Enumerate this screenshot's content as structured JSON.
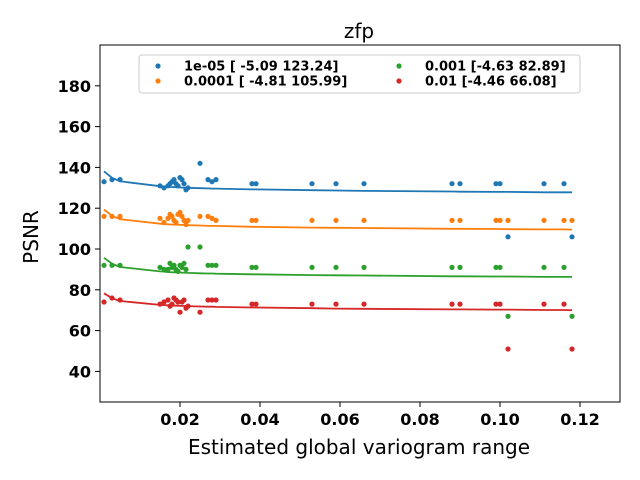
{
  "chart_data": {
    "type": "scatter",
    "title": "zfp",
    "xlabel": "Estimated global variogram range",
    "ylabel": "PSNR",
    "xlim": [
      0.0,
      0.13
    ],
    "ylim": [
      25,
      200
    ],
    "xticks": [
      0.02,
      0.04,
      0.06,
      0.08,
      0.1,
      0.12
    ],
    "xtick_labels": [
      "0.02",
      "0.04",
      "0.06",
      "0.08",
      "0.10",
      "0.12"
    ],
    "yticks": [
      40,
      60,
      80,
      100,
      120,
      140,
      160,
      180
    ],
    "ytick_labels": [
      "40",
      "60",
      "80",
      "100",
      "120",
      "140",
      "160",
      "180"
    ],
    "grid": false,
    "legend_position": "top-center",
    "x": [
      0.001,
      0.003,
      0.005,
      0.015,
      0.016,
      0.017,
      0.0175,
      0.018,
      0.0185,
      0.019,
      0.0195,
      0.02,
      0.0205,
      0.021,
      0.0215,
      0.022,
      0.025,
      0.027,
      0.028,
      0.029,
      0.038,
      0.039,
      0.053,
      0.059,
      0.066,
      0.088,
      0.09,
      0.099,
      0.1,
      0.102,
      0.111,
      0.116,
      0.118
    ],
    "series": [
      {
        "name": "1e-05 [ -5.09 123.24]",
        "color": "#1f77b4",
        "y": [
          133,
          134,
          134,
          131,
          130,
          131,
          132,
          133,
          134,
          132,
          131,
          135,
          134,
          132,
          129,
          130,
          142,
          134,
          133,
          134,
          132,
          132,
          132,
          132,
          132,
          132,
          132,
          132,
          132,
          106,
          132,
          132,
          106
        ],
        "fit": [
          138.1,
          134.9,
          133.2,
          130.8,
          130.6,
          130.5,
          130.4,
          130.4,
          130.3,
          130.3,
          130.2,
          130.2,
          130.1,
          130.1,
          130.1,
          130.0,
          129.8,
          129.7,
          129.6,
          129.6,
          129.2,
          129.2,
          128.8,
          128.7,
          128.5,
          128.2,
          128.1,
          128.0,
          128.0,
          128.0,
          127.8,
          127.8,
          127.8
        ]
      },
      {
        "name": "0.0001 [ -4.81 105.99]",
        "color": "#ff7f0e",
        "y": [
          116,
          116,
          116,
          115,
          113,
          115,
          117,
          116,
          114,
          113,
          117,
          118,
          116,
          114,
          112,
          114,
          116,
          116,
          115,
          114,
          114,
          114,
          114,
          114,
          114,
          114,
          114,
          114,
          114,
          114,
          114,
          114,
          114
        ],
        "fit": [
          119.3,
          116.3,
          114.6,
          112.4,
          112.2,
          112.1,
          112.0,
          112.0,
          111.9,
          111.9,
          111.9,
          111.8,
          111.8,
          111.8,
          111.7,
          111.7,
          111.5,
          111.3,
          111.3,
          111.3,
          110.9,
          110.9,
          110.5,
          110.4,
          110.3,
          109.9,
          109.9,
          109.8,
          109.8,
          109.7,
          109.6,
          109.6,
          109.5
        ]
      },
      {
        "name": "0.001 [-4.63 82.89]",
        "color": "#2ca02c",
        "y": [
          92,
          92,
          92,
          91,
          90,
          90,
          93,
          91,
          92,
          90,
          89,
          92,
          91,
          93,
          90,
          101,
          101,
          92,
          92,
          92,
          91,
          91,
          91,
          91,
          91,
          91,
          91,
          91,
          91,
          67,
          91,
          91,
          67
        ],
        "fit": [
          95.7,
          92.8,
          91.2,
          89.0,
          88.9,
          88.7,
          88.7,
          88.6,
          88.6,
          88.5,
          88.5,
          88.5,
          88.4,
          88.4,
          88.4,
          88.3,
          88.1,
          88.0,
          88.0,
          87.9,
          87.6,
          87.6,
          87.2,
          87.1,
          87.0,
          86.6,
          86.6,
          86.5,
          86.5,
          86.5,
          86.3,
          86.3,
          86.3
        ]
      },
      {
        "name": "0.01 [-4.46 66.08]",
        "color": "#d62728",
        "y": [
          74,
          76,
          75,
          73,
          74,
          75,
          72,
          73,
          76,
          75,
          74,
          69,
          74,
          75,
          71,
          72,
          69,
          75,
          75,
          75,
          73,
          73,
          73,
          73,
          73,
          73,
          73,
          73,
          73,
          51,
          73,
          73,
          51
        ],
        "fit": [
          78.3,
          75.9,
          74.5,
          72.6,
          72.5,
          72.4,
          72.3,
          72.3,
          72.2,
          72.2,
          72.2,
          72.1,
          72.1,
          72.1,
          72.0,
          72.0,
          71.8,
          71.7,
          71.7,
          71.6,
          71.3,
          71.3,
          71.0,
          70.8,
          70.7,
          70.4,
          70.4,
          70.3,
          70.3,
          70.3,
          70.1,
          70.1,
          70.0
        ]
      }
    ]
  }
}
